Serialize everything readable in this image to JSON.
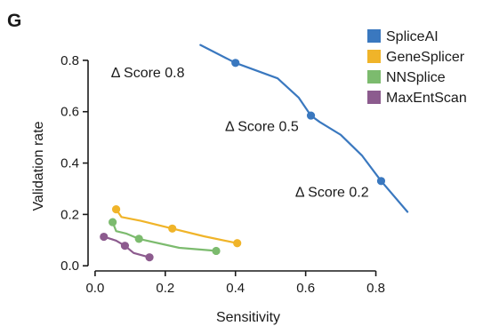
{
  "panel_label": "G",
  "chart_data": {
    "type": "line",
    "xlabel": "Sensitivity",
    "ylabel": "Validation rate",
    "xlim": [
      -0.02,
      0.9
    ],
    "ylim": [
      -0.02,
      0.9
    ],
    "xticks": [
      0.0,
      0.2,
      0.4,
      0.6,
      0.8
    ],
    "yticks": [
      0.0,
      0.2,
      0.4,
      0.6,
      0.8
    ],
    "xtick_labels": [
      "0.0",
      "0.2",
      "0.4",
      "0.6",
      "0.8"
    ],
    "ytick_labels": [
      "0.0",
      "0.2",
      "0.4",
      "0.6",
      "0.8"
    ],
    "grid": false,
    "legend_position": "top-right",
    "series": [
      {
        "name": "SpliceAI",
        "color": "#3a78bf",
        "x": [
          0.3,
          0.4,
          0.52,
          0.58,
          0.615,
          0.64,
          0.7,
          0.76,
          0.815,
          0.89
        ],
        "y": [
          0.86,
          0.79,
          0.73,
          0.655,
          0.585,
          0.56,
          0.51,
          0.43,
          0.33,
          0.21
        ],
        "markers": [
          {
            "x": 0.4,
            "y": 0.79
          },
          {
            "x": 0.615,
            "y": 0.585
          },
          {
            "x": 0.815,
            "y": 0.33
          }
        ]
      },
      {
        "name": "GeneSplicer",
        "color": "#f0b429",
        "x": [
          0.06,
          0.075,
          0.13,
          0.22,
          0.31,
          0.405
        ],
        "y": [
          0.22,
          0.19,
          0.175,
          0.145,
          0.115,
          0.088
        ],
        "markers": [
          {
            "x": 0.06,
            "y": 0.22
          },
          {
            "x": 0.22,
            "y": 0.145
          },
          {
            "x": 0.405,
            "y": 0.088
          }
        ]
      },
      {
        "name": "NNSplice",
        "color": "#7cbb6e",
        "x": [
          0.05,
          0.06,
          0.09,
          0.125,
          0.24,
          0.345
        ],
        "y": [
          0.17,
          0.135,
          0.125,
          0.105,
          0.07,
          0.058
        ],
        "markers": [
          {
            "x": 0.05,
            "y": 0.17
          },
          {
            "x": 0.125,
            "y": 0.105
          },
          {
            "x": 0.345,
            "y": 0.058
          }
        ]
      },
      {
        "name": "MaxEntScan",
        "color": "#8c5b8e",
        "x": [
          0.025,
          0.06,
          0.085,
          0.11,
          0.155
        ],
        "y": [
          0.113,
          0.098,
          0.078,
          0.05,
          0.033
        ],
        "markers": [
          {
            "x": 0.025,
            "y": 0.113
          },
          {
            "x": 0.085,
            "y": 0.078
          },
          {
            "x": 0.155,
            "y": 0.033
          }
        ]
      }
    ],
    "annotations": [
      {
        "text": "Δ Score 0.8",
        "x": 0.255,
        "y": 0.755
      },
      {
        "text": "Δ Score 0.5",
        "x": 0.58,
        "y": 0.545
      },
      {
        "text": "Δ Score 0.2",
        "x": 0.78,
        "y": 0.29
      }
    ]
  }
}
